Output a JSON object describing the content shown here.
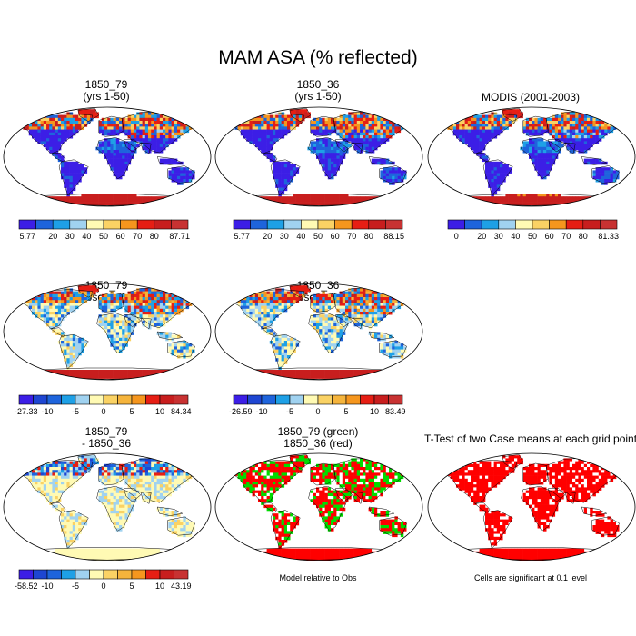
{
  "title": "MAM ASA (% reflected)",
  "colors": {
    "legend10": [
      "#3c1ee6",
      "#1e64dc",
      "#1ea0e6",
      "#a0d2f0",
      "#fffab4",
      "#fad264",
      "#f5961e",
      "#e61e14",
      "#c81e1e",
      "#c83232"
    ],
    "legend12": [
      "#3c1ee6",
      "#1e46d2",
      "#1e64dc",
      "#1ea0e6",
      "#a0d2f0",
      "#fffab4",
      "#fad264",
      "#f5b43c",
      "#f5961e",
      "#e61e14",
      "#c81e1e",
      "#c83232"
    ],
    "land_low": "#3c1ee6",
    "land_mid": "#1ea0e6",
    "snow": "#e61e14",
    "ttest_sig": "#ff0000",
    "case1": "#00dc00",
    "case2": "#ff0000",
    "outline": "#000000"
  },
  "panels": [
    {
      "title_lines": [
        "1850_79",
        "(yrs 1-50)"
      ],
      "scheme": "abs",
      "colorbar": {
        "colors_key": "legend10",
        "labels": [
          "5.77",
          "20",
          "30",
          "40",
          "50",
          "60",
          "70",
          "80",
          "87.71"
        ]
      }
    },
    {
      "title_lines": [
        "1850_36",
        "(yrs 1-50)"
      ],
      "scheme": "abs",
      "colorbar": {
        "colors_key": "legend10",
        "labels": [
          "5.77",
          "20",
          "30",
          "40",
          "50",
          "60",
          "70",
          "80",
          "88.15"
        ]
      }
    },
    {
      "title_lines": [
        "MODIS (2001-2003)"
      ],
      "scheme": "modis",
      "colorbar": {
        "colors_key": "legend10",
        "labels": [
          "0",
          "20",
          "30",
          "40",
          "50",
          "60",
          "70",
          "80",
          "81.33"
        ]
      }
    },
    {
      "title_lines": [
        "1850_79",
        "- Observations"
      ],
      "scheme": "diff",
      "colorbar": {
        "colors_key": "legend12",
        "labels": [
          "-27.33",
          "-10",
          "-5",
          "0",
          "5",
          "10",
          "84.34"
        ]
      }
    },
    {
      "title_lines": [
        "1850_36",
        "- Observations"
      ],
      "scheme": "diff",
      "colorbar": {
        "colors_key": "legend12",
        "labels": [
          "-26.59",
          "-10",
          "-5",
          "0",
          "5",
          "10",
          "83.49"
        ]
      }
    },
    {
      "title_lines": [
        "1850_79",
        "- 1850_36"
      ],
      "scheme": "diff2",
      "colorbar": {
        "colors_key": "legend12",
        "labels": [
          "-58.52",
          "-10",
          "-5",
          "0",
          "5",
          "10",
          "43.19"
        ]
      }
    },
    {
      "title_lines": [
        "1850_79 (green)",
        "1850_36 (red)"
      ],
      "scheme": "compare",
      "note": "Model relative to Obs"
    },
    {
      "title_lines": [
        "T-Test of two Case means at each grid point"
      ],
      "scheme": "ttest",
      "note": "Cells are significant at 0.1 level"
    }
  ]
}
